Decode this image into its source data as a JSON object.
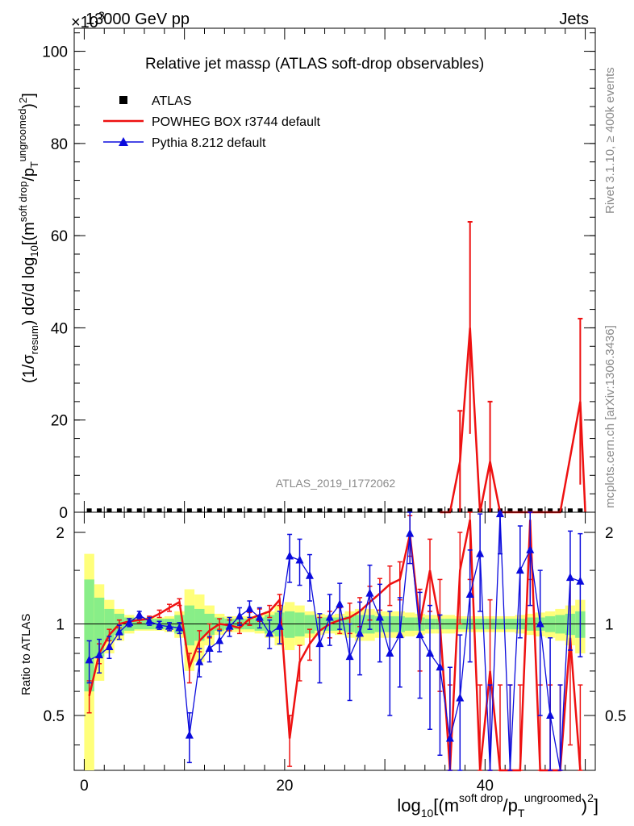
{
  "header": {
    "left": "13000 GeV pp",
    "right": "Jets",
    "exponent": "×10",
    "exponent_power": "3"
  },
  "side_labels": {
    "rivet": "Rivet 3.1.10, ≥ 400k events",
    "mcplots": "mcplots.cern.ch [arXiv:1306.3436]"
  },
  "watermark": "ATLAS_2019_I1772062",
  "chart_data": [
    {
      "type": "line",
      "title": "Relative jet massρ (ATLAS soft-drop observables)",
      "ylabel": "(1/σresum) dσ/d log10[(m^(soft drop)/pT^(ungroomed))^2]",
      "xlim": [
        -1,
        51
      ],
      "ylim": [
        0,
        105
      ],
      "xticks": [
        0,
        20,
        40
      ],
      "yticks": [
        0,
        20,
        40,
        60,
        80,
        100
      ],
      "legend": [
        {
          "label": "ATLAS",
          "color": "#000000",
          "style": "marker-square"
        },
        {
          "label": "POWHEG BOX r3744 default",
          "color": "#ee1111",
          "style": "line"
        },
        {
          "label": "Pythia 8.212 default",
          "color": "#0b0bdd",
          "style": "line-triangle"
        }
      ],
      "series": [
        {
          "name": "ATLAS",
          "x": [
            0.5,
            1.5,
            2.5,
            3.5,
            4.5,
            5.5,
            6.5,
            7.5,
            8.5,
            9.5,
            10.5,
            11.5,
            12.5,
            13.5,
            14.5,
            15.5,
            16.5,
            17.5,
            18.5,
            19.5,
            20.5,
            21.5,
            22.5,
            23.5,
            24.5,
            25.5,
            26.5,
            27.5,
            28.5,
            29.5,
            30.5,
            31.5,
            32.5,
            33.5,
            34.5,
            35.5,
            36.5,
            37.5,
            38.5,
            39.5,
            40.5,
            41.5,
            42.5,
            43.5,
            44.5,
            45.5,
            46.5,
            47.5,
            48.5,
            49.5
          ],
          "values": [
            0.3,
            0.3,
            0.3,
            0.3,
            0.3,
            0.3,
            0.3,
            0.3,
            0.3,
            0.3,
            0.3,
            0.3,
            0.3,
            0.3,
            0.3,
            0.3,
            0.3,
            0.3,
            0.3,
            0.3,
            0.3,
            0.3,
            0.3,
            0.3,
            0.3,
            0.3,
            0.3,
            0.3,
            0.3,
            0.3,
            0.3,
            0.3,
            0.3,
            0.3,
            0.3,
            0.3,
            0.3,
            0.3,
            0.3,
            0.3,
            0.3,
            0.3,
            0.3,
            0.3,
            0.3,
            0.3,
            0.3,
            0.3,
            0.3,
            0.3
          ]
        },
        {
          "name": "POWHEG BOX r3744 default",
          "x": [
            35.5,
            36.5,
            37.5,
            38.5,
            39.5,
            40.5,
            41.5,
            42.5,
            43.5,
            44.5,
            45.5,
            46.5,
            47.5,
            48.5,
            49.5,
            50
          ],
          "values": [
            0,
            0,
            11,
            40,
            0,
            11,
            0,
            0,
            0,
            0,
            0,
            0,
            0,
            12,
            24,
            0
          ],
          "err": [
            0,
            0,
            11,
            23,
            0,
            13,
            0,
            0,
            0,
            0,
            0,
            0,
            0,
            0,
            18,
            0
          ]
        },
        {
          "name": "Pythia 8.212 default",
          "values_note": "all bins near zero on this scale",
          "values": []
        }
      ]
    },
    {
      "type": "line",
      "title": "",
      "xlabel": "log10[(m^(soft drop)/pT^(ungroomed))^2]",
      "ylabel": "Ratio to ATLAS",
      "xlim": [
        -1,
        51
      ],
      "ylim": [
        0.33,
        2.33
      ],
      "yticks": [
        0.5,
        1,
        2
      ],
      "reference_line": 1,
      "band_bins_x": [
        0.5,
        1.5,
        2.5,
        3.5,
        4.5,
        5.5,
        6.5,
        7.5,
        8.5,
        9.5,
        10.5,
        11.5,
        12.5,
        13.5,
        14.5,
        15.5,
        16.5,
        17.5,
        18.5,
        19.5,
        20.5,
        21.5,
        22.5,
        23.5,
        24.5,
        25.5,
        26.5,
        27.5,
        28.5,
        29.5,
        30.5,
        31.5,
        32.5,
        33.5,
        34.5,
        35.5,
        36.5,
        37.5,
        38.5,
        39.5,
        40.5,
        41.5,
        42.5,
        43.5,
        44.5,
        45.5,
        46.5,
        47.5,
        48.5,
        49.5
      ],
      "band_yellow_halfwidth": [
        0.7,
        0.35,
        0.2,
        0.12,
        0.07,
        0.05,
        0.05,
        0.05,
        0.06,
        0.1,
        0.3,
        0.25,
        0.15,
        0.08,
        0.06,
        0.06,
        0.06,
        0.07,
        0.1,
        0.15,
        0.18,
        0.15,
        0.1,
        0.08,
        0.07,
        0.08,
        0.1,
        0.12,
        0.12,
        0.1,
        0.1,
        0.1,
        0.09,
        0.08,
        0.07,
        0.07,
        0.07,
        0.06,
        0.06,
        0.06,
        0.06,
        0.06,
        0.06,
        0.07,
        0.08,
        0.09,
        0.1,
        0.12,
        0.15,
        0.2
      ],
      "band_green_halfwidth": [
        0.4,
        0.22,
        0.12,
        0.08,
        0.05,
        0.04,
        0.04,
        0.04,
        0.04,
        0.07,
        0.15,
        0.12,
        0.08,
        0.05,
        0.04,
        0.04,
        0.04,
        0.05,
        0.07,
        0.09,
        0.1,
        0.09,
        0.07,
        0.05,
        0.05,
        0.05,
        0.06,
        0.07,
        0.07,
        0.06,
        0.06,
        0.06,
        0.05,
        0.05,
        0.04,
        0.04,
        0.04,
        0.04,
        0.04,
        0.04,
        0.04,
        0.04,
        0.04,
        0.04,
        0.05,
        0.05,
        0.06,
        0.07,
        0.08,
        0.1
      ],
      "series": [
        {
          "name": "POWHEG BOX r3744 default",
          "x": [
            0.5,
            1.5,
            2.5,
            3.5,
            4.5,
            5.5,
            6.5,
            7.5,
            8.5,
            9.5,
            10.5,
            11.5,
            12.5,
            13.5,
            14.5,
            15.5,
            16.5,
            17.5,
            18.5,
            19.5,
            20.5,
            21.5,
            22.5,
            23.5,
            24.5,
            25.5,
            26.5,
            27.5,
            28.5,
            29.5,
            30.5,
            31.5,
            32.5,
            33.5,
            34.5,
            35.5,
            36.5,
            37.5,
            38.5,
            39.5,
            40.5,
            41.5,
            42.5,
            43.5,
            44.5,
            45.5,
            46.5,
            47.5,
            48.5,
            49.5
          ],
          "values": [
            0.58,
            0.8,
            0.92,
            1.0,
            1.02,
            1.03,
            1.04,
            1.08,
            1.13,
            1.18,
            0.72,
            0.88,
            0.95,
            1.0,
            0.99,
            0.97,
            1.04,
            1.07,
            1.1,
            1.2,
            0.42,
            0.75,
            0.86,
            0.95,
            1.0,
            1.03,
            1.05,
            1.1,
            1.18,
            1.26,
            1.35,
            1.4,
            1.97,
            1.0,
            1.5,
            1.0,
            0.33,
            1.5,
            2.2,
            0.33,
            0.7,
            0.33,
            0.33,
            0.33,
            2.2,
            0.33,
            0.33,
            0.33,
            0.9,
            0.33
          ],
          "err": [
            0.07,
            0.06,
            0.04,
            0.03,
            0.02,
            0.02,
            0.02,
            0.03,
            0.03,
            0.03,
            0.08,
            0.07,
            0.05,
            0.04,
            0.04,
            0.04,
            0.05,
            0.05,
            0.05,
            0.05,
            0.08,
            0.1,
            0.1,
            0.1,
            0.1,
            0.1,
            0.12,
            0.12,
            0.15,
            0.15,
            0.2,
            0.2,
            0.3,
            0.3,
            0.4,
            0.4,
            0.3,
            0.5,
            0.8,
            0.3,
            0.5,
            0.3,
            0.3,
            0.3,
            0.8,
            0.3,
            0.3,
            0.3,
            0.5,
            0.3
          ]
        },
        {
          "name": "Pythia 8.212 default",
          "x": [
            0.5,
            1.5,
            2.5,
            3.5,
            4.5,
            5.5,
            6.5,
            7.5,
            8.5,
            9.5,
            10.5,
            11.5,
            12.5,
            13.5,
            14.5,
            15.5,
            16.5,
            17.5,
            18.5,
            19.5,
            20.5,
            21.5,
            22.5,
            23.5,
            24.5,
            25.5,
            26.5,
            27.5,
            28.5,
            29.5,
            30.5,
            31.5,
            32.5,
            33.5,
            34.5,
            35.5,
            36.5,
            37.5,
            38.5,
            39.5,
            40.5,
            41.5,
            42.5,
            43.5,
            44.5,
            45.5,
            46.5,
            47.5,
            48.5,
            49.5
          ],
          "values": [
            0.76,
            0.79,
            0.84,
            0.94,
            1.01,
            1.07,
            1.02,
            0.99,
            0.98,
            0.97,
            0.43,
            0.75,
            0.83,
            0.88,
            0.98,
            1.06,
            1.12,
            1.05,
            0.93,
            0.98,
            1.67,
            1.62,
            1.44,
            0.86,
            1.05,
            1.16,
            0.78,
            0.93,
            1.26,
            1.05,
            0.8,
            0.92,
            1.98,
            0.92,
            0.8,
            0.72,
            0.42,
            0.57,
            1.25,
            1.7,
            0.33,
            2.3,
            0.33,
            1.5,
            1.75,
            1.0,
            0.5,
            0.33,
            1.42,
            1.38
          ],
          "err": [
            0.12,
            0.1,
            0.07,
            0.05,
            0.03,
            0.03,
            0.03,
            0.03,
            0.03,
            0.04,
            0.08,
            0.08,
            0.08,
            0.07,
            0.07,
            0.07,
            0.07,
            0.08,
            0.1,
            0.12,
            0.3,
            0.28,
            0.25,
            0.22,
            0.2,
            0.2,
            0.22,
            0.25,
            0.3,
            0.3,
            0.3,
            0.3,
            0.4,
            0.35,
            0.35,
            0.35,
            0.3,
            0.35,
            0.5,
            0.6,
            0.3,
            0.6,
            0.3,
            0.6,
            0.6,
            0.5,
            0.4,
            0.3,
            0.6,
            0.6
          ]
        }
      ]
    }
  ]
}
